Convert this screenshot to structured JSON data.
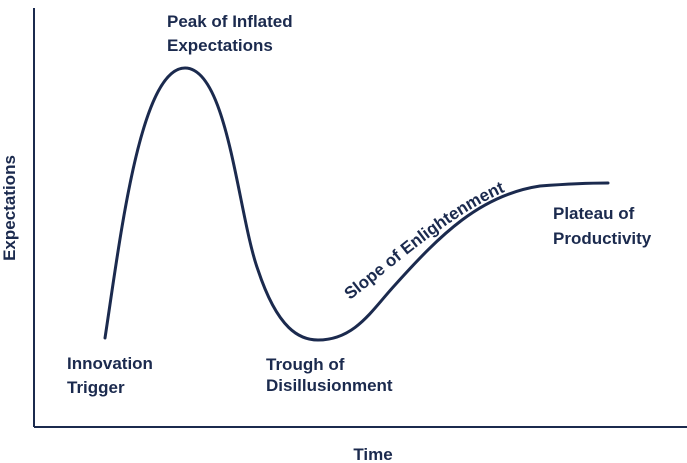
{
  "colors": {
    "ink": "#1b2a4e",
    "background": "#ffffff"
  },
  "axes": {
    "x_title": "Time",
    "y_title": "Expectations"
  },
  "phases": {
    "innovation_trigger": [
      "Innovation",
      "Trigger"
    ],
    "peak": [
      "Peak of Inflated",
      "Expectations"
    ],
    "trough": [
      "Trough of",
      "Disillusionment"
    ],
    "slope": "Slope of Enlightenment",
    "plateau": [
      "Plateau of",
      "Productivity"
    ]
  }
}
